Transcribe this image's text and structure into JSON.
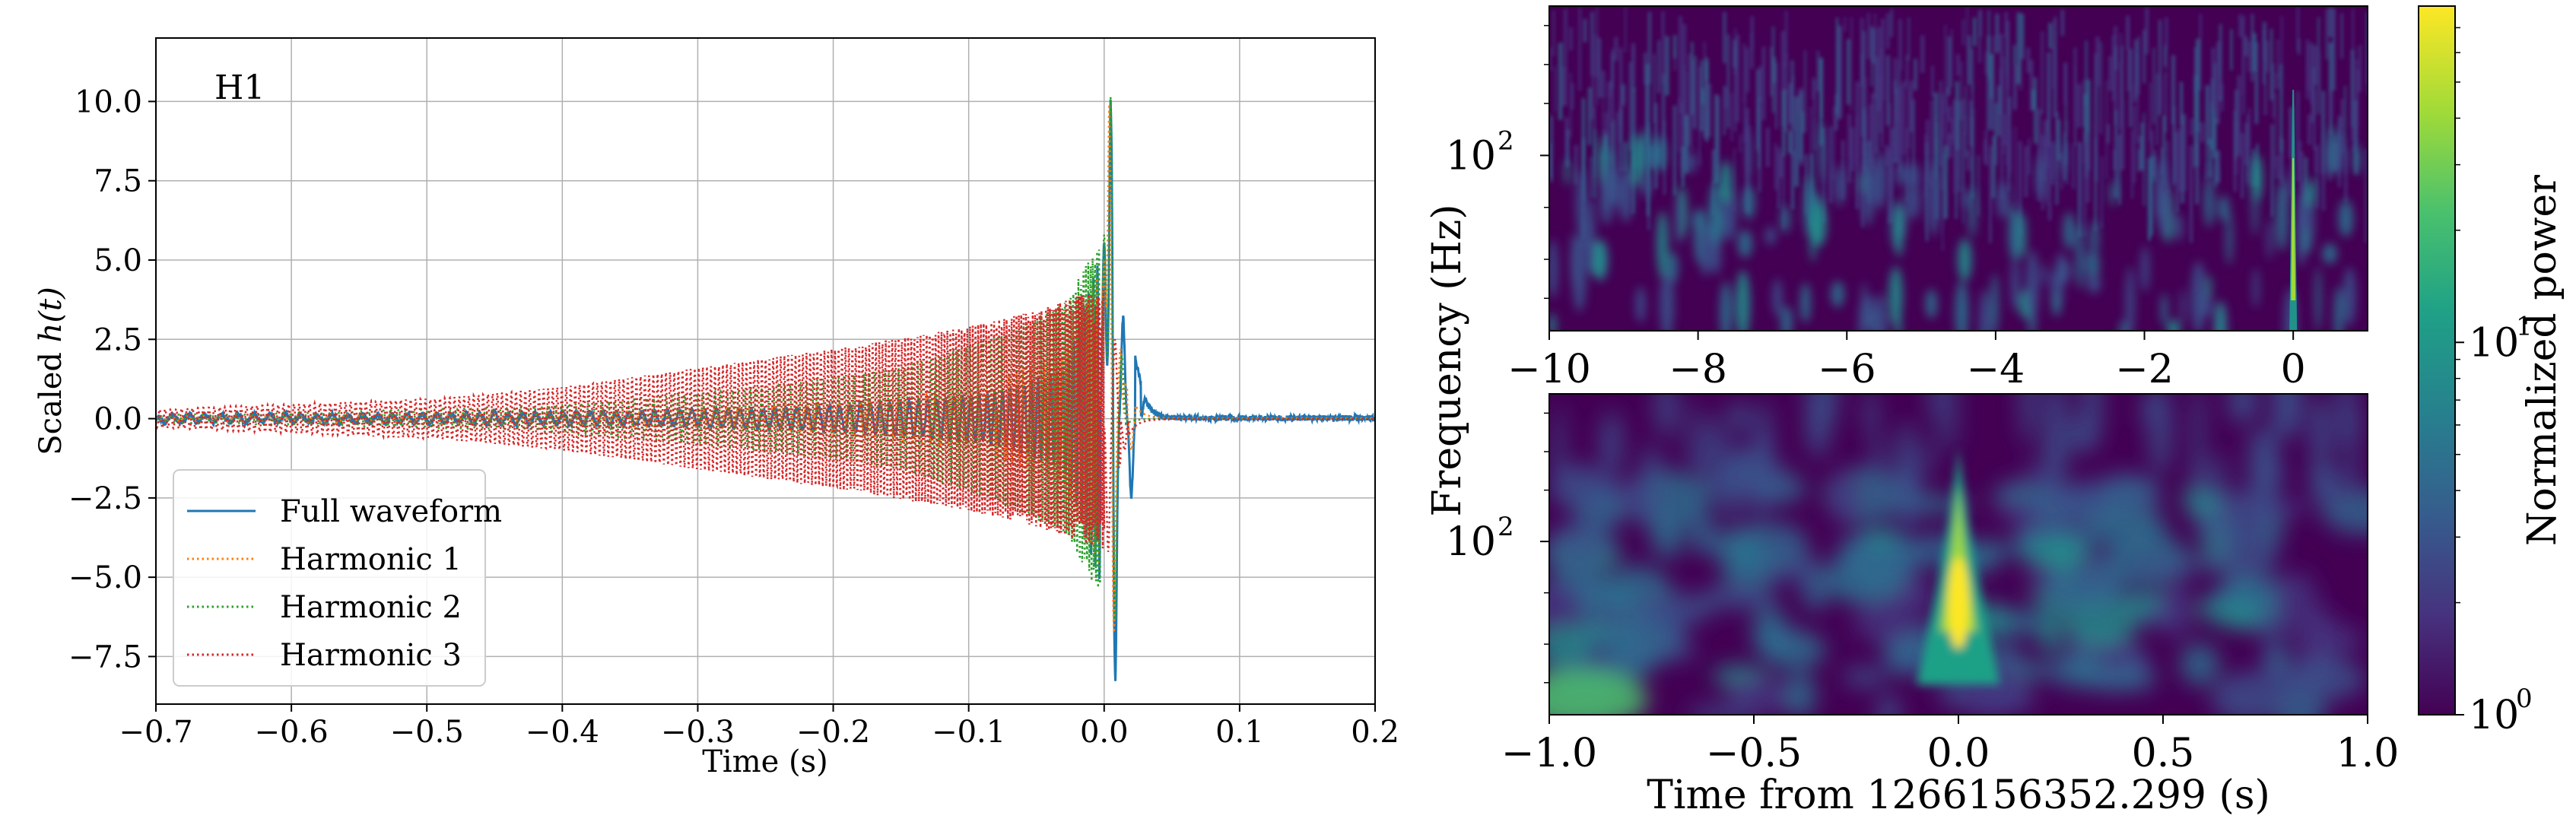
{
  "chart_data": [
    {
      "type": "line",
      "panel": "waveform",
      "detector_label": "H1",
      "xlabel": "Time (s)",
      "ylabel_prefix": "Scaled ",
      "ylabel_math": "h(t)",
      "xlim": [
        -0.7,
        0.2
      ],
      "ylim": [
        -9.0,
        12.0
      ],
      "xticks": [
        -0.7,
        -0.6,
        -0.5,
        -0.4,
        -0.3,
        -0.2,
        -0.1,
        0.0,
        0.1,
        0.2
      ],
      "xtick_labels": [
        "−0.7",
        "−0.6",
        "−0.5",
        "−0.4",
        "−0.3",
        "−0.2",
        "−0.1",
        "0.0",
        "0.1",
        "0.2"
      ],
      "yticks": [
        -7.5,
        -5.0,
        -2.5,
        0.0,
        2.5,
        5.0,
        7.5,
        10.0
      ],
      "ytick_labels": [
        "−7.5",
        "−5.0",
        "−2.5",
        "0.0",
        "2.5",
        "5.0",
        "7.5",
        "10.0"
      ],
      "grid": true,
      "legend_position": "bottom-left",
      "series": [
        {
          "name": "Full waveform",
          "style": "solid",
          "color": "#1f77b4",
          "peaks": [
            [
              -0.6,
              0.1
            ],
            [
              -0.45,
              0.15
            ],
            [
              -0.35,
              0.2
            ],
            [
              -0.25,
              0.3
            ],
            [
              -0.15,
              0.5
            ],
            [
              -0.08,
              0.8
            ],
            [
              -0.03,
              1.5
            ],
            [
              0.0,
              5.5
            ],
            [
              0.005,
              10.5
            ],
            [
              0.008,
              -8.8
            ],
            [
              0.014,
              3.2
            ],
            [
              0.02,
              -2.5
            ],
            [
              0.03,
              0.6
            ]
          ]
        },
        {
          "name": "Harmonic 1",
          "style": "dotted",
          "color": "#ff7f0e",
          "peaks": [
            [
              -0.4,
              0.2
            ],
            [
              -0.3,
              0.3
            ],
            [
              -0.2,
              0.5
            ],
            [
              -0.1,
              0.9
            ],
            [
              -0.03,
              2.0
            ],
            [
              0.0,
              5.0
            ],
            [
              0.004,
              10.4
            ],
            [
              0.007,
              -7.2
            ],
            [
              0.012,
              2.2
            ],
            [
              0.02,
              -1.0
            ]
          ]
        },
        {
          "name": "Harmonic 2",
          "style": "dotted",
          "color": "#2ca02c",
          "peaks": [
            [
              -0.45,
              0.3
            ],
            [
              -0.35,
              0.6
            ],
            [
              -0.25,
              1.0
            ],
            [
              -0.15,
              1.6
            ],
            [
              -0.08,
              2.6
            ],
            [
              -0.03,
              3.6
            ],
            [
              0.0,
              5.8
            ],
            [
              0.005,
              10.6
            ],
            [
              0.008,
              -6.8
            ],
            [
              0.013,
              2.0
            ]
          ]
        },
        {
          "name": "Harmonic 3",
          "style": "dotted",
          "color": "#d62728",
          "peaks": [
            [
              -0.5,
              0.6
            ],
            [
              -0.4,
              1.0
            ],
            [
              -0.3,
              1.6
            ],
            [
              -0.2,
              2.2
            ],
            [
              -0.1,
              2.9
            ],
            [
              -0.05,
              3.4
            ],
            [
              -0.01,
              4.0
            ],
            [
              0.003,
              -4.2
            ],
            [
              0.008,
              2.5
            ],
            [
              0.015,
              -1.0
            ]
          ]
        }
      ]
    },
    {
      "type": "heatmap",
      "panel": "spectrogram-top",
      "xlim": [
        -10,
        1
      ],
      "xticks": [
        -10,
        -8,
        -6,
        -4,
        -2,
        0
      ],
      "xtick_labels": [
        "−10",
        "−8",
        "−6",
        "−4",
        "−2",
        "0"
      ],
      "ytick_label_base": "10",
      "ytick_label_exp": "2",
      "yscale": "log",
      "colormap": "viridis",
      "peak_time": 0.0
    },
    {
      "type": "heatmap",
      "panel": "spectrogram-bottom",
      "xlim": [
        -1.0,
        1.0
      ],
      "xticks": [
        -1.0,
        -0.5,
        0.0,
        0.5,
        1.0
      ],
      "xtick_labels": [
        "−1.0",
        "−0.5",
        "0.0",
        "0.5",
        "1.0"
      ],
      "ytick_label_base": "10",
      "ytick_label_exp": "2",
      "yscale": "log",
      "colormap": "viridis",
      "peak_time": 0.0
    }
  ],
  "shared": {
    "spectrogram_ylabel": "Frequency (Hz)",
    "spectrogram_xlabel": "Time from 1266156352.299 (s)",
    "colorbar_label": "Normalized power",
    "colorbar_ticks": [
      {
        "base": "10",
        "exp": "0",
        "value": 1
      },
      {
        "base": "10",
        "exp": "1",
        "value": 10
      }
    ],
    "colorbar_range": [
      1,
      80
    ],
    "colors": {
      "grid": "#b0b0b0",
      "axis": "#000000",
      "background": "#ffffff"
    }
  }
}
